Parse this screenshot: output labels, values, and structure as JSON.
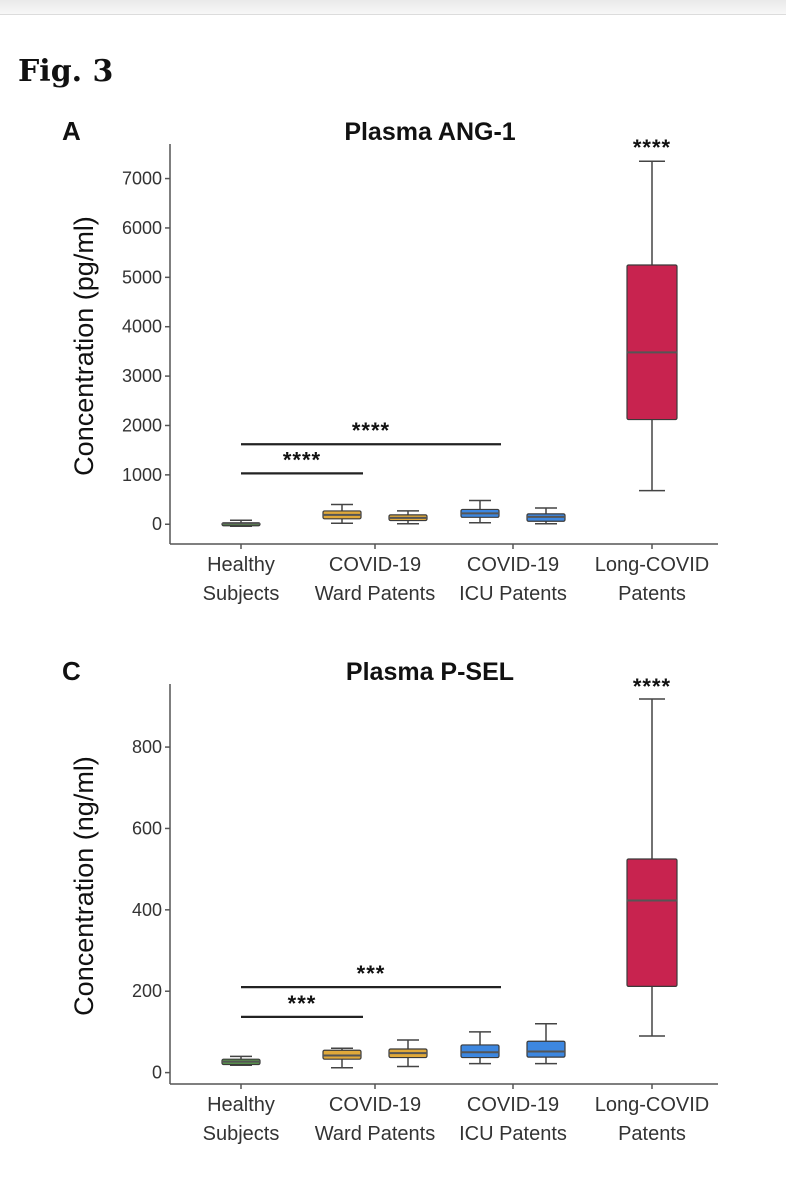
{
  "figure_title": "Fig. 3",
  "chart_data": [
    {
      "type": "box",
      "panel": "A",
      "title": "Plasma ANG-1",
      "ylabel": "Concentration (pg/ml)",
      "ylim": [
        -400,
        7700
      ],
      "yticks": [
        0,
        1000,
        2000,
        3000,
        4000,
        5000,
        6000,
        7000
      ],
      "categories": [
        "Healthy Subjects",
        "COVID-19 Ward Patents",
        "COVID-19 ICU Patents",
        "Long-COVID Patents"
      ],
      "category_lines": [
        [
          "Healthy",
          "Subjects"
        ],
        [
          "COVID-19",
          "Ward Patents"
        ],
        [
          "COVID-19",
          "ICU Patents"
        ],
        [
          "Long-COVID",
          "Patents"
        ]
      ],
      "boxes": [
        {
          "group": 0,
          "offset": 0,
          "color": "#5a9b4c",
          "min": -40,
          "q1": 0,
          "median": 15,
          "q3": 30,
          "max": 80
        },
        {
          "group": 1,
          "offset": -1,
          "color": "#e0a93a",
          "min": 20,
          "q1": 110,
          "median": 190,
          "q3": 270,
          "max": 400
        },
        {
          "group": 1,
          "offset": 1,
          "color": "#e0a93a",
          "min": 10,
          "q1": 75,
          "median": 130,
          "q3": 190,
          "max": 270
        },
        {
          "group": 2,
          "offset": -1,
          "color": "#3d87e0",
          "min": 30,
          "q1": 140,
          "median": 220,
          "q3": 300,
          "max": 480
        },
        {
          "group": 2,
          "offset": 1,
          "color": "#3d87e0",
          "min": 10,
          "q1": 60,
          "median": 150,
          "q3": 210,
          "max": 330
        },
        {
          "group": 3,
          "offset": 0,
          "color": "#c8234f",
          "min": 680,
          "q1": 2120,
          "median": 3480,
          "q3": 5250,
          "max": 7350
        }
      ],
      "significance": [
        {
          "from": 0,
          "to": 1,
          "y": 1030,
          "label": "****"
        },
        {
          "from": 0,
          "to": 2,
          "y": 1620,
          "label": "****"
        }
      ],
      "top_annotation": {
        "group": 3,
        "y": 7600,
        "label": "****"
      }
    },
    {
      "type": "box",
      "panel": "C",
      "title": "Plasma P-SEL",
      "ylabel": "Concentration (ng/ml)",
      "ylim": [
        -28,
        955
      ],
      "yticks": [
        0,
        200,
        400,
        600,
        800
      ],
      "categories": [
        "Healthy Subjects",
        "COVID-19 Ward Patents",
        "COVID-19 ICU Patents",
        "Long-COVID Patents"
      ],
      "category_lines": [
        [
          "Healthy",
          "Subjects"
        ],
        [
          "COVID-19",
          "Ward Patents"
        ],
        [
          "COVID-19",
          "ICU Patents"
        ],
        [
          "Long-COVID",
          "Patents"
        ]
      ],
      "boxes": [
        {
          "group": 0,
          "offset": 0,
          "color": "#5a9b4c",
          "min": 18,
          "q1": 20,
          "median": 27,
          "q3": 33,
          "max": 40
        },
        {
          "group": 1,
          "offset": -1,
          "color": "#e0a93a",
          "min": 12,
          "q1": 33,
          "median": 42,
          "q3": 55,
          "max": 60
        },
        {
          "group": 1,
          "offset": 1,
          "color": "#e0a93a",
          "min": 15,
          "q1": 37,
          "median": 48,
          "q3": 58,
          "max": 80
        },
        {
          "group": 2,
          "offset": -1,
          "color": "#3d87e0",
          "min": 22,
          "q1": 37,
          "median": 50,
          "q3": 68,
          "max": 100
        },
        {
          "group": 2,
          "offset": 1,
          "color": "#3d87e0",
          "min": 22,
          "q1": 38,
          "median": 52,
          "q3": 77,
          "max": 120
        },
        {
          "group": 3,
          "offset": 0,
          "color": "#c8234f",
          "min": 90,
          "q1": 212,
          "median": 423,
          "q3": 525,
          "max": 918
        }
      ],
      "significance": [
        {
          "from": 0,
          "to": 1,
          "y": 137,
          "label": "***"
        },
        {
          "from": 0,
          "to": 2,
          "y": 210,
          "label": "***"
        }
      ],
      "top_annotation": {
        "group": 3,
        "y": 945,
        "label": "****"
      }
    }
  ]
}
